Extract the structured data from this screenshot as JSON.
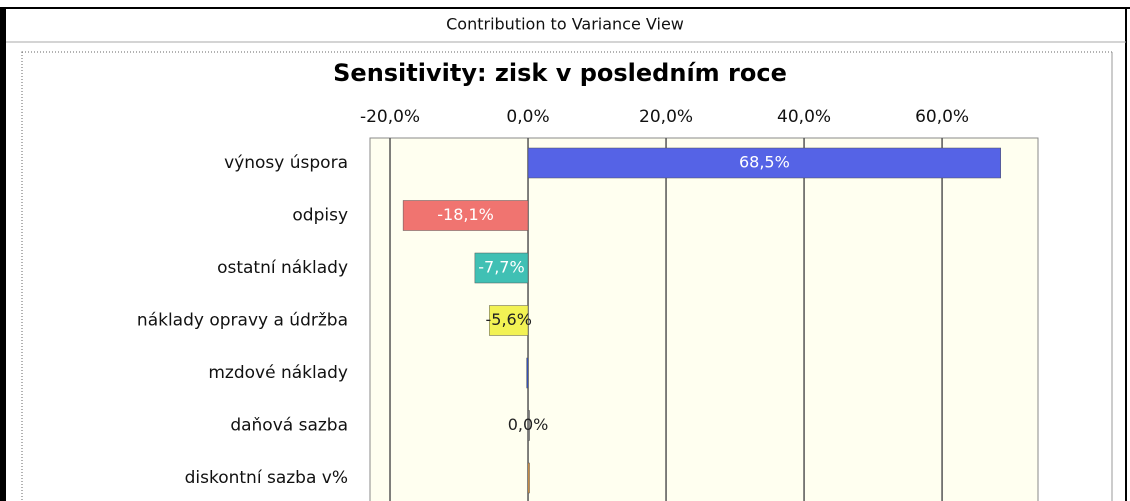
{
  "window_title": "Contribution to Variance View",
  "chart_data": {
    "type": "bar",
    "orientation": "horizontal",
    "title": "Sensitivity: zisk v posledním roce",
    "categories": [
      "výnosy úspora",
      "odpisy",
      "ostatní náklady",
      "náklady opravy a údržba",
      "mzdové náklady",
      "daňová sazba",
      "diskontní sazba v%"
    ],
    "values": [
      68.5,
      -18.1,
      -7.7,
      -5.6,
      -0.2,
      0.0,
      0.1
    ],
    "value_labels": [
      "68,5%",
      "-18,1%",
      "-7,7%",
      "-5,6%",
      null,
      "0,0%",
      null
    ],
    "colors": [
      "#5563e6",
      "#f07470",
      "#40c0b4",
      "#f2f254",
      "#3050c0",
      "#888888",
      "#f0a040"
    ],
    "xlim": [
      -22.9,
      73.9
    ],
    "xticks": [
      {
        "value": -20,
        "label": "-20,0%"
      },
      {
        "value": 0,
        "label": "0,0%"
      },
      {
        "value": 20,
        "label": "20,0%"
      },
      {
        "value": 40,
        "label": "40,0%"
      },
      {
        "value": 60,
        "label": "60,0%"
      }
    ],
    "grid": true
  }
}
